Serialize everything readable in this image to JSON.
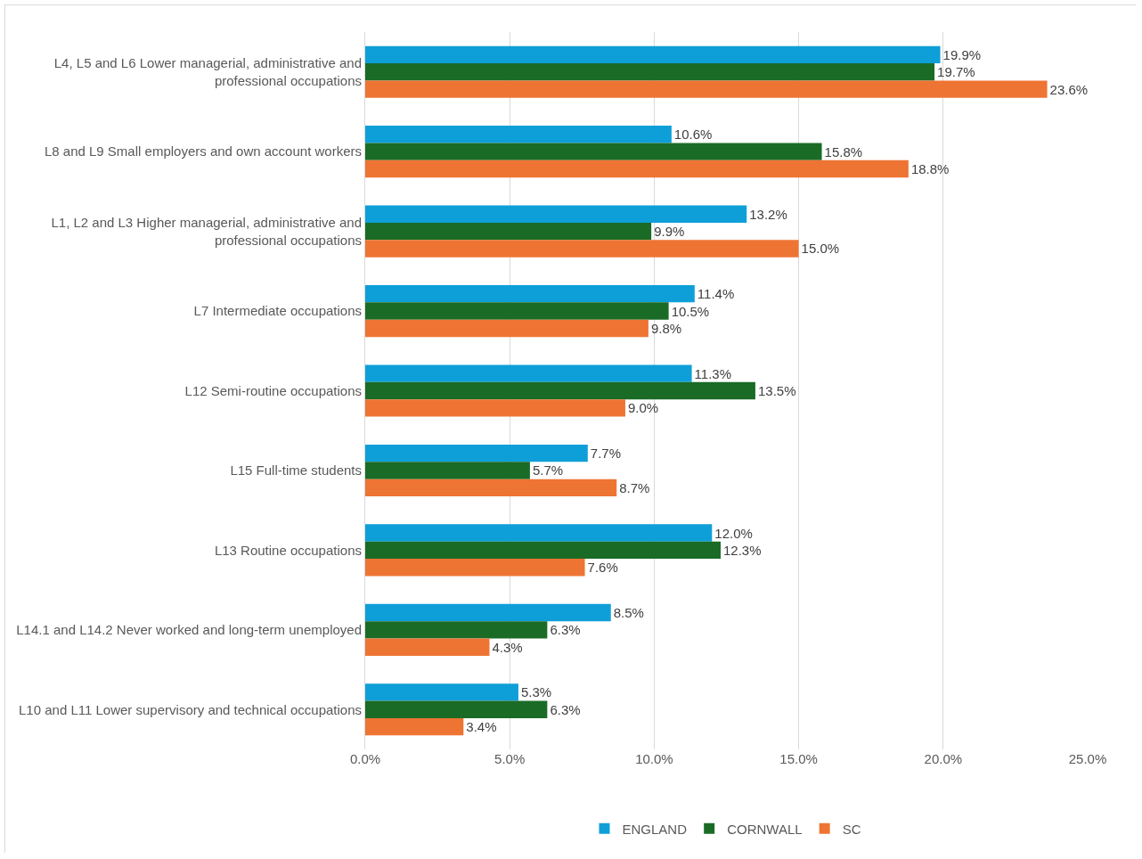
{
  "chart_data": {
    "type": "bar",
    "orientation": "horizontal",
    "categories": [
      "L4, L5 and L6 Lower managerial, administrative and professional occupations",
      "L8 and L9 Small employers and own account workers",
      "L1, L2 and L3 Higher managerial, administrative and professional occupations",
      "L7 Intermediate occupations",
      "L12 Semi-routine occupations",
      "L15 Full-time students",
      "L13 Routine occupations",
      "L14.1 and L14.2 Never worked and long-term unemployed",
      "L10 and L11 Lower supervisory and technical occupations"
    ],
    "series": [
      {
        "name": "ENGLAND",
        "color": "#0e9fd8",
        "values": [
          19.9,
          10.6,
          13.2,
          11.4,
          11.3,
          7.7,
          12.0,
          8.5,
          5.3
        ],
        "value_labels": [
          "19.9%",
          "10.6%",
          "13.2%",
          "11.4%",
          "11.3%",
          "7.7%",
          "12.0%",
          "8.5%",
          "5.3%"
        ]
      },
      {
        "name": "CORNWALL",
        "color": "#1a6b26",
        "values": [
          19.7,
          15.8,
          9.9,
          10.5,
          13.5,
          5.7,
          12.3,
          6.3,
          6.3
        ],
        "value_labels": [
          "19.7%",
          "15.8%",
          "9.9%",
          "10.5%",
          "13.5%",
          "5.7%",
          "12.3%",
          "6.3%",
          "6.3%"
        ]
      },
      {
        "name": "SC",
        "color": "#ee7433",
        "values": [
          23.6,
          18.8,
          15.0,
          9.8,
          9.0,
          8.7,
          7.6,
          4.3,
          3.4
        ],
        "value_labels": [
          "23.6%",
          "18.8%",
          "15.0%",
          "9.8%",
          "9.0%",
          "8.7%",
          "7.6%",
          "4.3%",
          "3.4%"
        ]
      }
    ],
    "xlim": [
      0,
      25
    ],
    "xticks": [
      {
        "value": 0,
        "label": "0.0%"
      },
      {
        "value": 5,
        "label": "5.0%"
      },
      {
        "value": 10,
        "label": "10.0%"
      },
      {
        "value": 15,
        "label": "15.0%"
      },
      {
        "value": 20,
        "label": "20.0%"
      },
      {
        "value": 25,
        "label": "25.0%"
      }
    ],
    "grid": "x",
    "legend": "bottom"
  }
}
